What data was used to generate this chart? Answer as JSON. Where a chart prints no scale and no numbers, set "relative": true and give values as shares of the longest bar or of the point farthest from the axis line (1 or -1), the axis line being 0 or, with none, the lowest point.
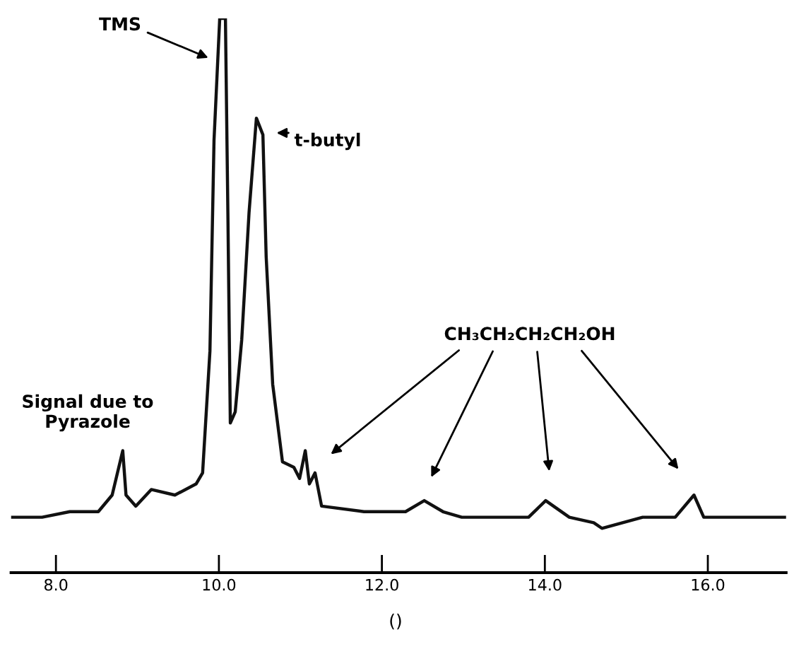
{
  "chart_data": {
    "type": "line",
    "relative": true,
    "color": "#111111",
    "x": [
      7.45,
      7.83,
      8.17,
      8.52,
      8.69,
      8.82,
      8.86,
      8.98,
      9.17,
      9.46,
      9.72,
      9.8,
      9.89,
      9.94,
      10.01,
      10.08,
      10.11,
      10.14,
      10.2,
      10.28,
      10.37,
      10.46,
      10.54,
      10.58,
      10.66,
      10.78,
      10.92,
      10.99,
      11.06,
      11.11,
      11.18,
      11.26,
      11.78,
      12.29,
      12.52,
      12.75,
      12.98,
      13.5,
      13.8,
      14.01,
      14.3,
      14.6,
      14.7,
      15.2,
      15.6,
      15.83,
      15.95,
      16.3,
      16.96
    ],
    "values": [
      0.1,
      0.1,
      0.11,
      0.11,
      0.14,
      0.22,
      0.14,
      0.12,
      0.15,
      0.14,
      0.16,
      0.18,
      0.4,
      0.78,
      1.0,
      1.0,
      0.65,
      0.27,
      0.29,
      0.42,
      0.65,
      0.82,
      0.79,
      0.57,
      0.34,
      0.2,
      0.19,
      0.17,
      0.22,
      0.16,
      0.18,
      0.12,
      0.11,
      0.11,
      0.13,
      0.11,
      0.1,
      0.1,
      0.1,
      0.13,
      0.1,
      0.09,
      0.08,
      0.1,
      0.1,
      0.14,
      0.1,
      0.1,
      0.1
    ],
    "xlim": [
      7.45,
      16.96
    ],
    "xticks": [
      {
        "value": 8,
        "label": "8.0"
      },
      {
        "value": 10,
        "label": "10.0"
      },
      {
        "value": 12,
        "label": "12.0"
      },
      {
        "value": 14,
        "label": "14.0"
      },
      {
        "value": 16,
        "label": "16.0"
      }
    ],
    "annotations": [
      "TMS",
      "t-butyl",
      "Signal due to\nPyrazole",
      "CH₃CH₂CH₂CH₂OH",
      "()"
    ]
  }
}
